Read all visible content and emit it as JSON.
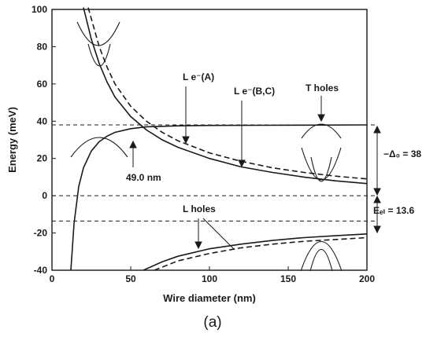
{
  "chart_data": {
    "type": "line",
    "xlabel": "Wire diameter (nm)",
    "ylabel": "Energy (meV)",
    "xlim": [
      0,
      200
    ],
    "ylim": [
      -40,
      100
    ],
    "x_ticks": [
      0,
      50,
      100,
      150,
      200
    ],
    "y_ticks": [
      -40,
      -20,
      0,
      20,
      40,
      60,
      80,
      100
    ],
    "caption": "(a)",
    "series": [
      {
        "name": "L e⁻(A)",
        "style": "solid",
        "x": [
          20,
          25,
          30,
          35,
          40,
          50,
          60,
          70,
          80,
          100,
          120,
          140,
          160,
          180,
          200
        ],
        "y": [
          101,
          84,
          71,
          61,
          53,
          42.5,
          35.3,
          30,
          26,
          20,
          15.5,
          12.5,
          10,
          8,
          6.5
        ]
      },
      {
        "name": "L e⁻(B,C)",
        "style": "dashed",
        "x": [
          23,
          30,
          35,
          40,
          50,
          60,
          70,
          80,
          100,
          120,
          140,
          160,
          180,
          200
        ],
        "y": [
          101,
          80,
          69,
          60,
          48,
          40,
          34,
          29.5,
          23,
          18.5,
          15,
          12.5,
          10.5,
          9
        ]
      },
      {
        "name": "T holes",
        "style": "solid",
        "x": [
          12,
          14,
          17,
          20,
          25,
          30,
          35,
          40,
          50,
          60,
          80,
          100,
          130,
          160,
          200
        ],
        "y": [
          -40,
          -15,
          5,
          15,
          24,
          29,
          32,
          34,
          36,
          37,
          37.5,
          37.7,
          37.8,
          37.9,
          38
        ]
      },
      {
        "name": "L holes",
        "style": "solid",
        "x": [
          58,
          70,
          80,
          100,
          120,
          140,
          160,
          180,
          200
        ],
        "y": [
          -40,
          -35.5,
          -32.5,
          -28.5,
          -26,
          -24,
          -22.5,
          -21.5,
          -20.5
        ]
      },
      {
        "name": "L holes (dashed)",
        "style": "dashed",
        "x": [
          65,
          80,
          100,
          120,
          140,
          160,
          180,
          200
        ],
        "y": [
          -40,
          -35,
          -31,
          -28,
          -26,
          -24.5,
          -23.5,
          -22.5
        ]
      }
    ],
    "reference_lines": [
      {
        "y": 38,
        "style": "dashed"
      },
      {
        "y": 0,
        "style": "dashed"
      },
      {
        "y": -13.6,
        "style": "dashed"
      }
    ],
    "annotations": [
      {
        "text": "L e⁻(A)",
        "x": 104,
        "y": 43
      },
      {
        "text": "L e⁻(B,C)",
        "x": 142,
        "y": 34
      },
      {
        "text": "T holes",
        "x": 175,
        "y": 24
      },
      {
        "text": "49.0 nm",
        "x": 49,
        "y": 49
      },
      {
        "text": "L holes",
        "x": 150,
        "y": 22
      },
      {
        "text": "−Δ₀ = 38",
        "x": 205,
        "y": 19
      },
      {
        "text": "Eₑₗ = 13.6",
        "x": 205,
        "y": -13.6
      }
    ]
  }
}
